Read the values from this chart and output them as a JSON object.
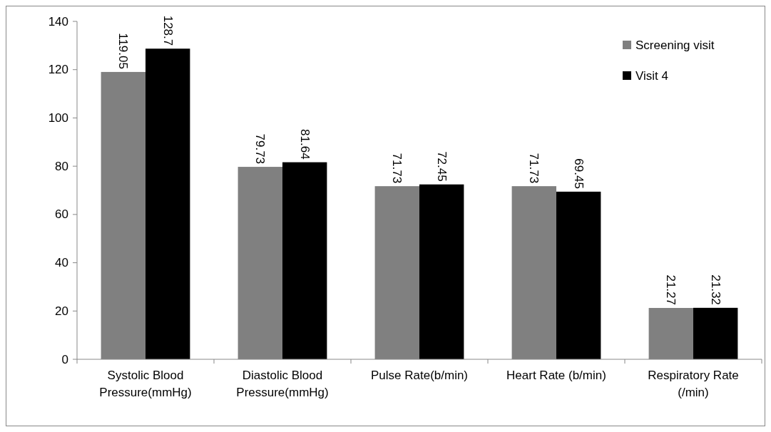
{
  "chart_data": {
    "type": "bar",
    "categories": [
      "Systolic Blood Pressure(mmHg)",
      "Diastolic Blood Pressure(mmHg)",
      "Pulse Rate(b/min)",
      "Heart Rate (b/min)",
      "Respiratory Rate (/min)"
    ],
    "series": [
      {
        "name": "Screening visit",
        "color": "#808080",
        "values": [
          119.05,
          79.73,
          71.73,
          71.73,
          21.27
        ]
      },
      {
        "name": "Visit 4",
        "color": "#000000",
        "values": [
          128.7,
          81.64,
          72.45,
          69.45,
          21.32
        ]
      }
    ],
    "ylim": [
      0,
      140
    ],
    "yticks": [
      0,
      20,
      40,
      60,
      80,
      100,
      120,
      140
    ],
    "grid": false,
    "legend": "top right",
    "data_labels": true
  }
}
